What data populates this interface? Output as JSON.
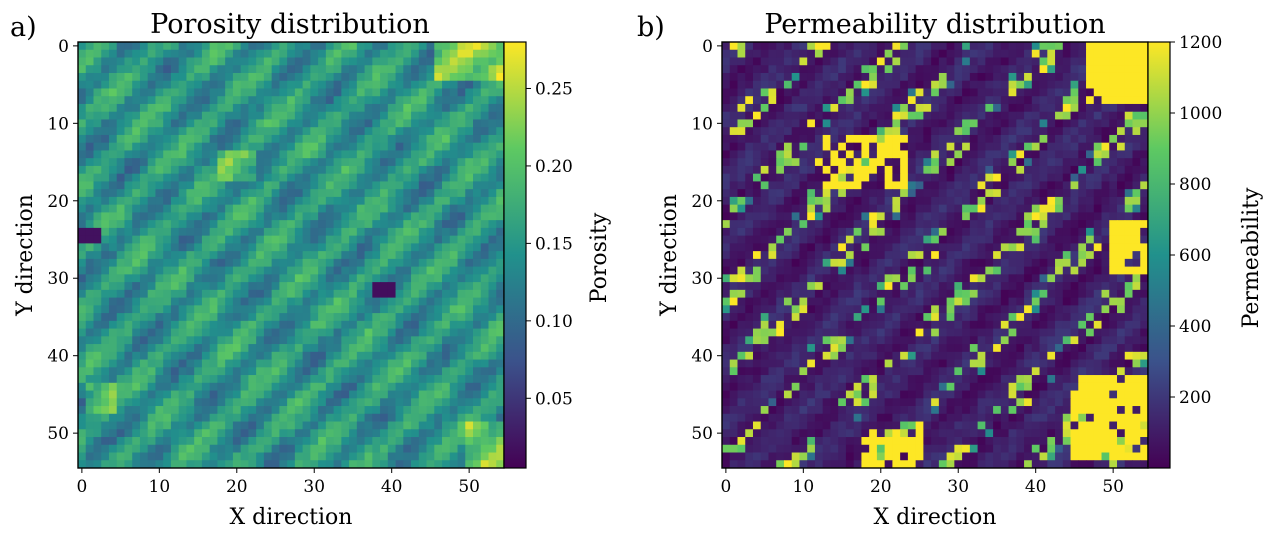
{
  "colormap": [
    "#440154",
    "#3b528b",
    "#21918c",
    "#5ec962",
    "#fde725"
  ],
  "chart_data": [
    {
      "type": "heatmap",
      "panel_label": "a)",
      "title": "Porosity distribution",
      "xlabel": "X direction",
      "ylabel": "Y direction",
      "xlim": [
        -0.5,
        54.5
      ],
      "ylim": [
        54.5,
        -0.5
      ],
      "grid_size": [
        55,
        55
      ],
      "x_ticks": [
        0,
        10,
        20,
        30,
        40,
        50
      ],
      "y_ticks": [
        0,
        10,
        20,
        30,
        40,
        50
      ],
      "colorbar": {
        "label": "Porosity",
        "range": [
          0.005,
          0.28
        ],
        "ticks": [
          0.05,
          0.1,
          0.15,
          0.2,
          0.25
        ],
        "tick_labels": [
          "0.05",
          "0.10",
          "0.15",
          "0.20",
          "0.25"
        ]
      }
    },
    {
      "type": "heatmap",
      "panel_label": "b)",
      "title": "Permeability distribution",
      "xlabel": "X direction",
      "ylabel": "Y direction",
      "xlim": [
        -0.5,
        54.5
      ],
      "ylim": [
        54.5,
        -0.5
      ],
      "grid_size": [
        55,
        55
      ],
      "x_ticks": [
        0,
        10,
        20,
        30,
        40,
        50
      ],
      "y_ticks": [
        0,
        10,
        20,
        30,
        40,
        50
      ],
      "colorbar": {
        "label": "Permeability",
        "range": [
          0,
          1200
        ],
        "ticks": [
          200,
          400,
          600,
          800,
          1000,
          1200
        ],
        "tick_labels": [
          "200",
          "400",
          "600",
          "800",
          "1000",
          "1200"
        ]
      }
    }
  ]
}
